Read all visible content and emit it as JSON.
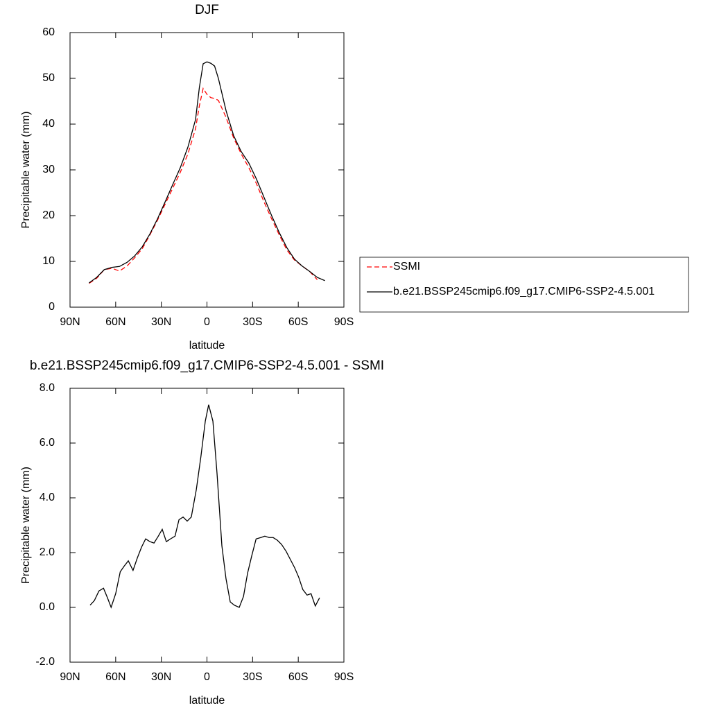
{
  "chart_data": [
    {
      "type": "line",
      "title": "DJF",
      "x_label": "latitude",
      "y_label": "Precipitable water (mm)",
      "x": [
        77.5,
        72.5,
        67.5,
        62.5,
        57.5,
        52.5,
        47.5,
        42.5,
        37.5,
        32.5,
        27.5,
        22.5,
        17.5,
        12.5,
        7.5,
        5,
        2.5,
        0,
        -2.5,
        -5,
        -7.5,
        -12.5,
        -17.5,
        -22.5,
        -27.5,
        -32.5,
        -37.5,
        -42.5,
        -47.5,
        -52.5,
        -57.5,
        -62.5,
        -67.5,
        -72.5,
        -77.5
      ],
      "series": [
        {
          "name": "SSMI",
          "color": "#ff0000",
          "dash": "dashed",
          "values": [
            5.2,
            6.3,
            8.2,
            8.5,
            7.9,
            9.0,
            10.8,
            12.8,
            15.8,
            19,
            22.5,
            26,
            29.5,
            33.5,
            39,
            44,
            47.8,
            46.5,
            45.8,
            45.6,
            45.2,
            41.5,
            37,
            33.5,
            30.5,
            27,
            23,
            19.3,
            15.8,
            12.5,
            10.3,
            9,
            7.8,
            6,
            null
          ]
        },
        {
          "name": "b.e21.BSSP245cmip6.f09_g17.CMIP6-SSP2-4.5.001",
          "color": "#000000",
          "dash": "solid",
          "values": [
            5.3,
            6.5,
            8.2,
            8.7,
            8.9,
            9.8,
            11.2,
            13.2,
            16,
            19.3,
            23,
            26.8,
            30.5,
            35,
            41,
            48,
            53.2,
            53.6,
            53.3,
            52.7,
            50,
            43,
            37.5,
            34,
            31.5,
            28,
            24,
            20,
            16.3,
            13,
            10.5,
            9,
            7.8,
            6.5,
            5.8
          ]
        }
      ],
      "xlim": [
        90,
        -90
      ],
      "xticks": [
        {
          "value": 90,
          "label": "90N"
        },
        {
          "value": 60,
          "label": "60N"
        },
        {
          "value": 30,
          "label": "30N"
        },
        0,
        {
          "value": -30,
          "label": "30S"
        },
        {
          "value": -60,
          "label": "60S"
        },
        {
          "value": -90,
          "label": "90S"
        }
      ],
      "ylim": [
        0,
        60
      ],
      "yticks": [
        0,
        10,
        20,
        30,
        40,
        50,
        60
      ],
      "legend": "outside-right"
    },
    {
      "type": "line",
      "title": "b.e21.BSSP245cmip6.f09_g17.CMIP6-SSP2-4.5.001 - SSMI",
      "x_label": "latitude",
      "y_label": "Precipitable water (mm)",
      "x": [
        76.8,
        74,
        71,
        68,
        65.4,
        63,
        60,
        57,
        54.5,
        51.7,
        48.6,
        45.8,
        43,
        40.3,
        37.5,
        34.8,
        32,
        29.4,
        26.7,
        24,
        21,
        18.4,
        15.7,
        13,
        10.3,
        7,
        4,
        1.1,
        -1.1,
        -3.9,
        -6.6,
        -9.8,
        -12.5,
        -15.3,
        -18,
        -21.2,
        -24,
        -26.7,
        -29.5,
        -32.3,
        -35.4,
        -38,
        -40.8,
        -43.5,
        -46.3,
        -49,
        -52,
        -54.8,
        -57.6,
        -60.3,
        -63,
        -65.8,
        -68.4,
        -71.2,
        -74
      ],
      "series": [
        {
          "name": null,
          "color": "#000000",
          "dash": "solid",
          "values": [
            0.08,
            0.25,
            0.6,
            0.7,
            0.35,
            0,
            0.5,
            1.3,
            1.5,
            1.7,
            1.35,
            1.8,
            2.2,
            2.5,
            2.4,
            2.35,
            2.6,
            2.85,
            2.4,
            2.5,
            2.6,
            3.2,
            3.3,
            3.15,
            3.3,
            4.3,
            5.5,
            6.8,
            7.4,
            6.8,
            4.9,
            2.25,
            1.05,
            0.2,
            0.08,
            0,
            0.4,
            1.25,
            1.9,
            2.5,
            2.55,
            2.6,
            2.55,
            2.55,
            2.45,
            2.3,
            2.05,
            1.75,
            1.45,
            1.1,
            0.65,
            0.45,
            0.5,
            0.05,
            0.35
          ]
        }
      ],
      "xlim": [
        90,
        -90
      ],
      "xticks": [
        {
          "value": 90,
          "label": "90N"
        },
        {
          "value": 60,
          "label": "60N"
        },
        {
          "value": 30,
          "label": "30N"
        },
        0,
        {
          "value": -30,
          "label": "30S"
        },
        {
          "value": -60,
          "label": "60S"
        },
        {
          "value": -90,
          "label": "90S"
        }
      ],
      "ylim": [
        -2,
        8
      ],
      "yticks": [
        {
          "value": -2,
          "label": "-2.0"
        },
        {
          "value": 0,
          "label": "0.0"
        },
        {
          "value": 2,
          "label": "2.0"
        },
        {
          "value": 4,
          "label": "4.0"
        },
        {
          "value": 6,
          "label": "6.0"
        },
        {
          "value": 8,
          "label": "8.0"
        }
      ]
    }
  ]
}
